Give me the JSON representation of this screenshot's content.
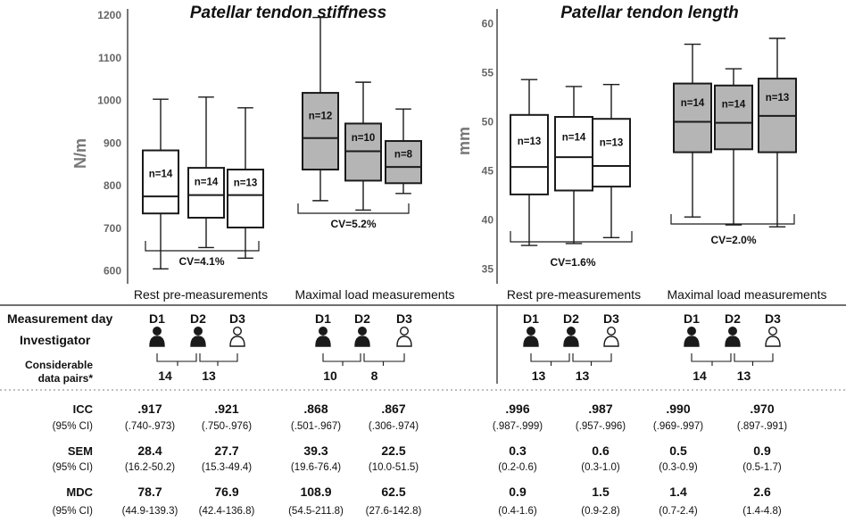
{
  "chart_data": [
    {
      "type": "box",
      "title": "Patellar tendon stiffness",
      "ylabel": "N/m",
      "ylim": [
        570,
        1215
      ],
      "yticks": [
        600,
        700,
        800,
        900,
        1000,
        1100,
        1200
      ],
      "series": [
        {
          "group": "Rest pre-measurements",
          "label": "n=14",
          "fill": "#ffffff",
          "min": 605,
          "q1": 735,
          "median": 775,
          "q3": 883,
          "max": 1003
        },
        {
          "group": "Rest pre-measurements",
          "label": "n=14",
          "fill": "#ffffff",
          "min": 655,
          "q1": 725,
          "median": 778,
          "q3": 842,
          "max": 1008
        },
        {
          "group": "Rest pre-measurements",
          "label": "n=13",
          "fill": "#ffffff",
          "min": 630,
          "q1": 702,
          "median": 778,
          "q3": 838,
          "max": 983
        },
        {
          "group": "Maximal load measurements",
          "label": "n=12",
          "fill": "#b5b5b5",
          "min": 765,
          "q1": 838,
          "median": 912,
          "q3": 1018,
          "max": 1195
        },
        {
          "group": "Maximal load measurements",
          "label": "n=10",
          "fill": "#b5b5b5",
          "min": 743,
          "q1": 812,
          "median": 881,
          "q3": 946,
          "max": 1043
        },
        {
          "group": "Maximal load measurements",
          "label": "n=8",
          "fill": "#b5b5b5",
          "min": 782,
          "q1": 806,
          "median": 844,
          "q3": 905,
          "max": 980
        }
      ],
      "cv": [
        "CV=4.1%",
        "CV=5.2%"
      ]
    },
    {
      "type": "box",
      "title": "Patellar tendon length",
      "ylabel": "mm",
      "ylim": [
        33.5,
        61.5
      ],
      "yticks": [
        35,
        40,
        45,
        50,
        55,
        60
      ],
      "series": [
        {
          "group": "Rest pre-measurements",
          "label": "n=13",
          "fill": "#ffffff",
          "min": 37.4,
          "q1": 42.6,
          "median": 45.4,
          "q3": 50.7,
          "max": 54.3
        },
        {
          "group": "Rest pre-measurements",
          "label": "n=14",
          "fill": "#ffffff",
          "min": 37.6,
          "q1": 43.0,
          "median": 46.4,
          "q3": 50.5,
          "max": 53.6
        },
        {
          "group": "Rest pre-measurements",
          "label": "n=13",
          "fill": "#ffffff",
          "min": 38.2,
          "q1": 43.4,
          "median": 45.5,
          "q3": 50.3,
          "max": 53.8
        },
        {
          "group": "Maximal load measurements",
          "label": "n=14",
          "fill": "#b5b5b5",
          "min": 40.3,
          "q1": 46.9,
          "median": 50.0,
          "q3": 53.9,
          "max": 57.9
        },
        {
          "group": "Maximal load measurements",
          "label": "n=14",
          "fill": "#b5b5b5",
          "min": 39.5,
          "q1": 47.2,
          "median": 49.9,
          "q3": 53.7,
          "max": 55.4
        },
        {
          "group": "Maximal load measurements",
          "label": "n=13",
          "fill": "#b5b5b5",
          "min": 39.3,
          "q1": 46.9,
          "median": 50.6,
          "q3": 54.4,
          "max": 58.5
        }
      ],
      "cv": [
        "CV=1.6%",
        "CV=2.0%"
      ]
    }
  ],
  "labels": {
    "measurement_day": "Measurement day",
    "investigator": "Investigator",
    "pairs_line1": "Considerable",
    "pairs_line2": "data pairs*",
    "icc": "ICC",
    "sem": "SEM",
    "mdc": "MDC",
    "ci": "(95% CI)",
    "days": [
      "D1",
      "D2",
      "D3"
    ],
    "groups": [
      "Rest pre-measurements",
      "Maximal load measurements"
    ]
  },
  "panels": [
    {
      "pairs": [
        "14",
        "13"
      ],
      "icc": [
        ".917",
        ".921"
      ],
      "icc_ci": [
        "(.740-.973)",
        "(.750-.976)"
      ],
      "sem": [
        "28.4",
        "27.7"
      ],
      "sem_ci": [
        "(16.2-50.2)",
        "(15.3-49.4)"
      ],
      "mdc": [
        "78.7",
        "76.9"
      ],
      "mdc_ci": [
        "(44.9-139.3)",
        "(42.4-136.8)"
      ]
    },
    {
      "pairs": [
        "10",
        "8"
      ],
      "icc": [
        ".868",
        ".867"
      ],
      "icc_ci": [
        "(.501-.967)",
        "(.306-.974)"
      ],
      "sem": [
        "39.3",
        "22.5"
      ],
      "sem_ci": [
        "(19.6-76.4)",
        "(10.0-51.5)"
      ],
      "mdc": [
        "108.9",
        "62.5"
      ],
      "mdc_ci": [
        "(54.5-211.8)",
        "(27.6-142.8)"
      ]
    },
    {
      "pairs": [
        "13",
        "13"
      ],
      "icc": [
        ".996",
        ".987"
      ],
      "icc_ci": [
        "(.987-.999)",
        "(.957-.996)"
      ],
      "sem": [
        "0.3",
        "0.6"
      ],
      "sem_ci": [
        "(0.2-0.6)",
        "(0.3-1.0)"
      ],
      "mdc": [
        "0.9",
        "1.5"
      ],
      "mdc_ci": [
        "(0.4-1.6)",
        "(0.9-2.8)"
      ]
    },
    {
      "pairs": [
        "14",
        "13"
      ],
      "icc": [
        ".990",
        ".970"
      ],
      "icc_ci": [
        "(.969-.997)",
        "(.897-.991)"
      ],
      "sem": [
        "0.5",
        "0.9"
      ],
      "sem_ci": [
        "(0.3-0.9)",
        "(0.5-1.7)"
      ],
      "mdc": [
        "1.4",
        "2.6"
      ],
      "mdc_ci": [
        "(0.7-2.4)",
        "(1.4-4.8)"
      ]
    }
  ],
  "colors": {
    "line": "#1a1a1a",
    "axis_text": "#666666",
    "divider": "#999999"
  }
}
